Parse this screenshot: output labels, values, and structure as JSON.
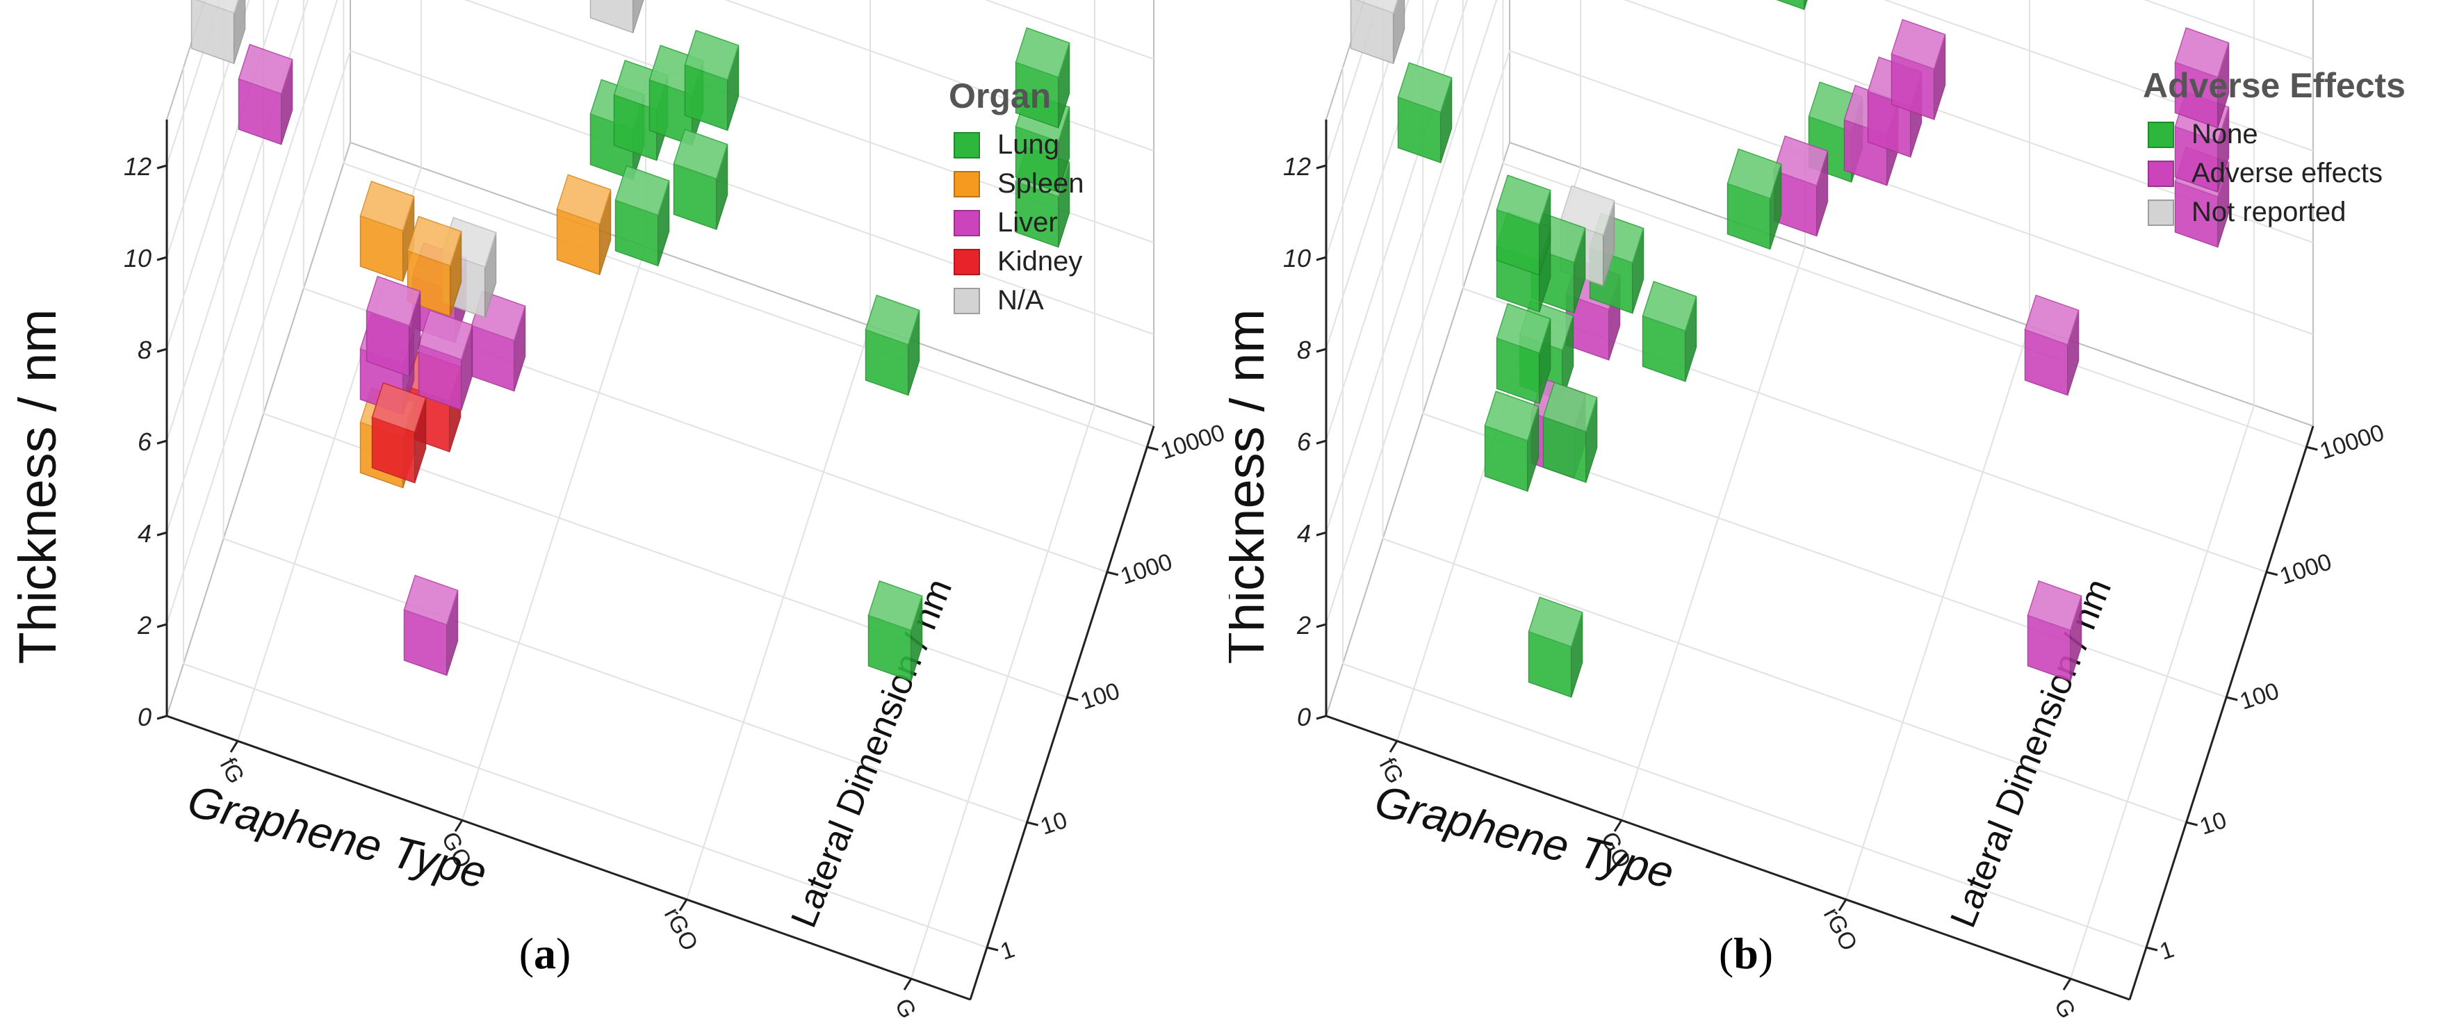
{
  "chart_data": [
    {
      "type": "scatter",
      "subtype": "3d-cube-scatter",
      "panel_label": "a",
      "zlabel": "Thickness / nm",
      "xlabel": "Graphene Type",
      "ylabel": "Lateral Dimension / nm",
      "z_ticks": [
        "0",
        "2",
        "4",
        "6",
        "8",
        "10",
        "12"
      ],
      "zlim": [
        0,
        13
      ],
      "x_ticks": [
        "fG",
        "GO",
        "rGO",
        "G"
      ],
      "y_ticks": [
        "1",
        "10",
        "100",
        "1000",
        "10000"
      ],
      "legend_title": "Organ",
      "legend_position": "top-right",
      "series": [
        {
          "name": "Lung",
          "color": "#2db83d",
          "points": [
            {
              "x": 1.6,
              "y": 2.6,
              "z": 11.2
            },
            {
              "x": 3.0,
              "y": 0.3,
              "z": 12.4
            },
            {
              "x": 3.0,
              "y": 3.0,
              "z": 8.0
            },
            {
              "x": 3.0,
              "y": 3.0,
              "z": 6.6
            },
            {
              "x": 3.0,
              "y": 3.0,
              "z": 5.4
            },
            {
              "x": 2.8,
              "y": 1.2,
              "z": 2.4
            },
            {
              "x": 1.2,
              "y": 3.0,
              "z": 3.6
            },
            {
              "x": 1.3,
              "y": 3.0,
              "z": 4.2
            },
            {
              "x": 1.45,
              "y": 3.0,
              "z": 4.8
            },
            {
              "x": 1.6,
              "y": 3.0,
              "z": 5.4
            },
            {
              "x": 1.6,
              "y": 2.8,
              "z": 4.0
            },
            {
              "x": 1.4,
              "y": 2.6,
              "z": 3.6
            }
          ]
        },
        {
          "name": "Spleen",
          "color": "#f59a1f",
          "points": [
            {
              "x": 0.65,
              "y": 1.2,
              "z": 7.2
            },
            {
              "x": 0.85,
              "y": 1.2,
              "z": 6.8
            },
            {
              "x": 0.65,
              "y": 1.2,
              "z": 2.7
            },
            {
              "x": 1.2,
              "y": 2.4,
              "z": 3.8
            }
          ]
        },
        {
          "name": "Liver",
          "color": "#cc44bb",
          "points": [
            {
              "x": 0.3,
              "y": 0.5,
              "z": 12.2
            },
            {
              "x": 0.7,
              "y": 1.1,
              "z": 5.6
            },
            {
              "x": 0.8,
              "y": 1.5,
              "z": 5.0
            },
            {
              "x": 0.65,
              "y": 1.2,
              "z": 4.3
            },
            {
              "x": 0.85,
              "y": 1.4,
              "z": 4.0
            },
            {
              "x": 1.05,
              "y": 1.5,
              "z": 4.4
            },
            {
              "x": 1.0,
              "y": 0.5,
              "z": 1.9
            }
          ]
        },
        {
          "name": "Kidney",
          "color": "#e8232a",
          "points": [
            {
              "x": 0.8,
              "y": 1.4,
              "z": 3.0
            },
            {
              "x": 0.7,
              "y": 1.2,
              "z": 2.9
            }
          ]
        },
        {
          "name": "N/A",
          "color": "#d3d3d3",
          "points": [
            {
              "x": 0.1,
              "y": 0.5,
              "z": 13.6
            },
            {
              "x": 0.95,
              "y": 1.4,
              "z": 6.2
            },
            {
              "x": 1.3,
              "y": 3.0,
              "z": 8.4
            },
            {
              "x": 1.2,
              "y": 3.0,
              "z": 6.8
            }
          ]
        }
      ]
    },
    {
      "type": "scatter",
      "subtype": "3d-cube-scatter",
      "panel_label": "b",
      "zlabel": "Thickness / nm",
      "xlabel": "Graphene Type",
      "ylabel": "Lateral Dimension / nm",
      "z_ticks": [
        "0",
        "2",
        "4",
        "6",
        "8",
        "10",
        "12"
      ],
      "zlim": [
        0,
        13
      ],
      "x_ticks": [
        "fG",
        "GO",
        "rGO",
        "G"
      ],
      "y_ticks": [
        "1",
        "10",
        "100",
        "1000",
        "10000"
      ],
      "legend_title": "Adverse Effects",
      "legend_position": "top-right",
      "series": [
        {
          "name": "None",
          "color": "#2db83d",
          "points": [
            {
              "x": 0.3,
              "y": 0.5,
              "z": 11.8
            },
            {
              "x": 1.6,
              "y": 2.6,
              "z": 11.2
            },
            {
              "x": 0.6,
              "y": 1.0,
              "z": 8.0
            },
            {
              "x": 0.6,
              "y": 1.0,
              "z": 7.2
            },
            {
              "x": 0.7,
              "y": 1.2,
              "z": 6.6
            },
            {
              "x": 0.9,
              "y": 1.4,
              "z": 6.2
            },
            {
              "x": 0.6,
              "y": 1.0,
              "z": 5.2
            },
            {
              "x": 0.65,
              "y": 1.2,
              "z": 4.6
            },
            {
              "x": 1.1,
              "y": 1.5,
              "z": 4.7
            },
            {
              "x": 0.55,
              "y": 1.0,
              "z": 3.2
            },
            {
              "x": 0.75,
              "y": 1.2,
              "z": 3.0
            },
            {
              "x": 0.9,
              "y": 0.3,
              "z": 2.0
            },
            {
              "x": 1.2,
              "y": 2.6,
              "z": 3.6
            },
            {
              "x": 1.45,
              "y": 3.0,
              "z": 4.0
            },
            {
              "x": 1.3,
              "y": 3.0,
              "z": 8.2
            },
            {
              "x": 1.25,
              "y": 3.0,
              "z": 7.4
            }
          ]
        },
        {
          "name": "Adverse effects",
          "color": "#cc44bb",
          "points": [
            {
              "x": 3.0,
              "y": 0.3,
              "z": 12.4
            },
            {
              "x": 3.0,
              "y": 3.0,
              "z": 8.0
            },
            {
              "x": 3.0,
              "y": 3.0,
              "z": 6.6
            },
            {
              "x": 3.0,
              "y": 3.0,
              "z": 5.4
            },
            {
              "x": 2.8,
              "y": 1.2,
              "z": 2.4
            },
            {
              "x": 1.8,
              "y": 3.0,
              "z": 6.0
            },
            {
              "x": 1.7,
              "y": 3.0,
              "z": 5.0
            },
            {
              "x": 1.35,
              "y": 2.8,
              "z": 3.4
            },
            {
              "x": 1.6,
              "y": 3.0,
              "z": 4.2
            },
            {
              "x": 0.8,
              "y": 1.4,
              "z": 5.0
            },
            {
              "x": 0.7,
              "y": 1.2,
              "z": 3.0
            }
          ]
        },
        {
          "name": "Not reported",
          "color": "#d3d3d3",
          "points": [
            {
              "x": 0.1,
              "y": 0.5,
              "z": 13.6
            },
            {
              "x": 0.8,
              "y": 1.3,
              "z": 7.0
            }
          ]
        }
      ]
    }
  ]
}
